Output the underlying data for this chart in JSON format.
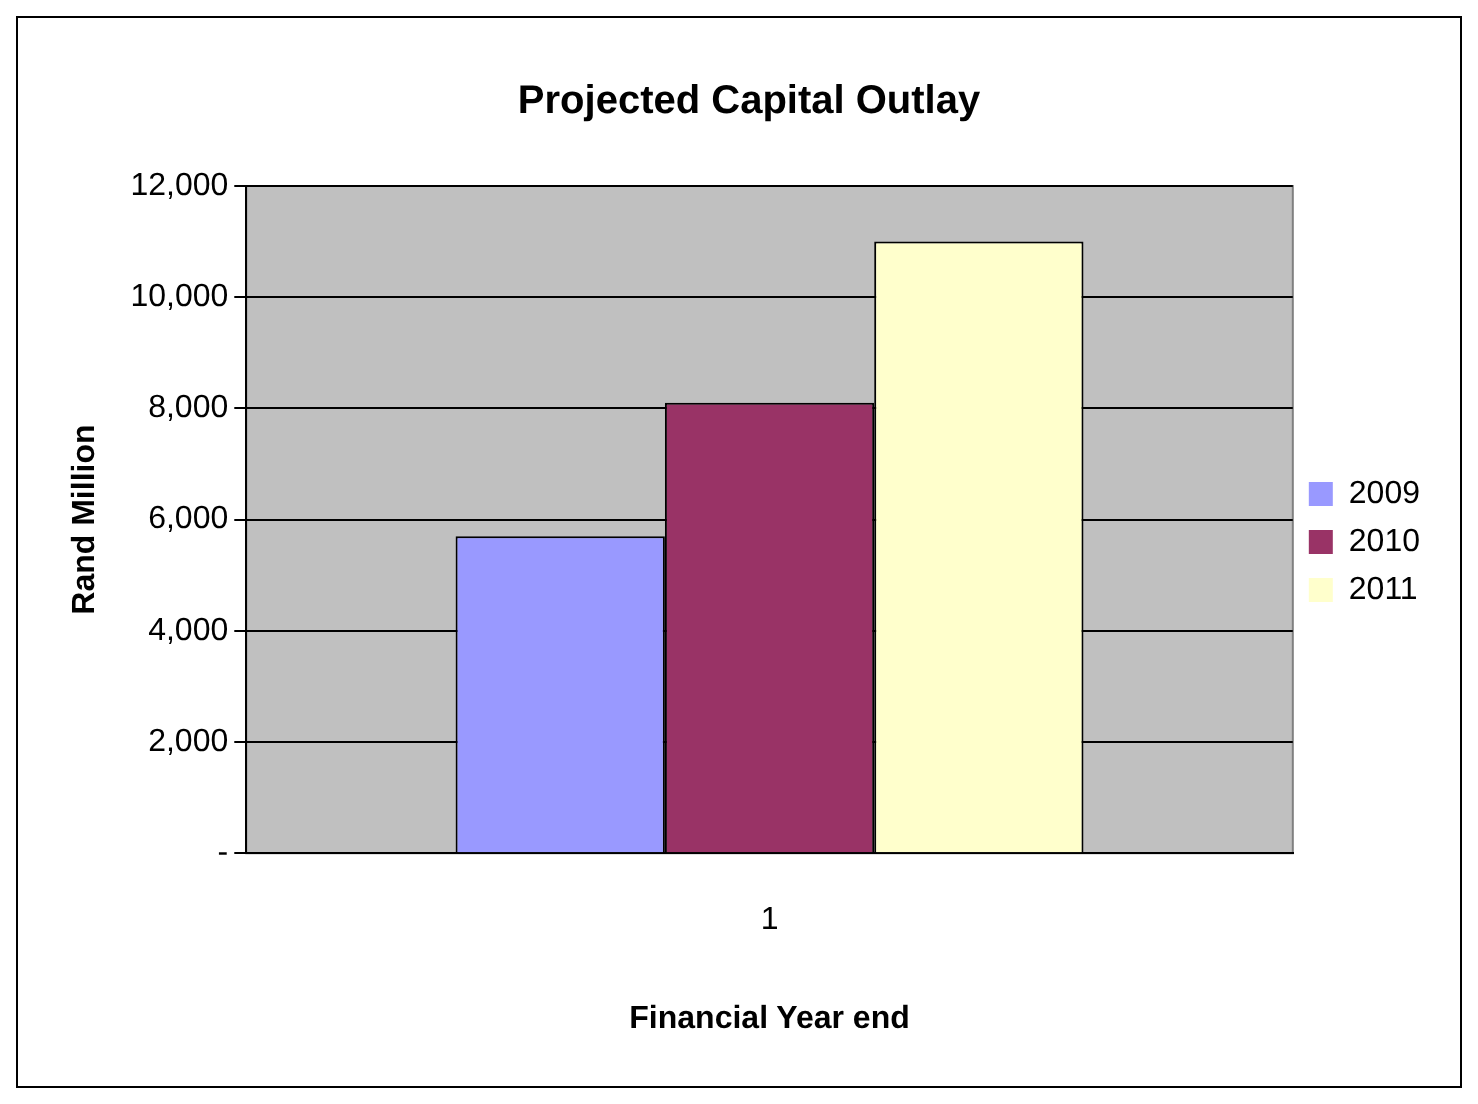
{
  "chart_data": {
    "type": "bar",
    "title": "Projected Capital Outlay",
    "xlabel": "Financial Year end",
    "ylabel": "Rand Million",
    "categories": [
      "1"
    ],
    "series": [
      {
        "name": "2009",
        "color": "#9999ff",
        "values": [
          5700
        ]
      },
      {
        "name": "2010",
        "color": "#993366",
        "values": [
          8100
        ]
      },
      {
        "name": "2011",
        "color": "#ffffcc",
        "values": [
          11000
        ]
      }
    ],
    "ylim": [
      0,
      12000
    ],
    "yticks": [
      {
        "value": 0,
        "label": "-"
      },
      {
        "value": 2000,
        "label": "2,000"
      },
      {
        "value": 4000,
        "label": "4,000"
      },
      {
        "value": 6000,
        "label": "6,000"
      },
      {
        "value": 8000,
        "label": "8,000"
      },
      {
        "value": 10000,
        "label": "10,000"
      },
      {
        "value": 12000,
        "label": "12,000"
      }
    ],
    "grid": "y",
    "legend": "right"
  }
}
